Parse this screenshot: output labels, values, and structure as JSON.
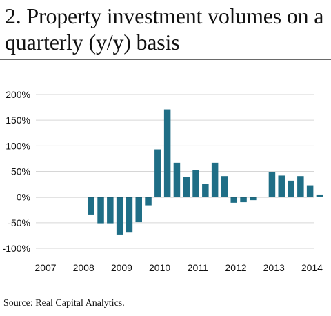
{
  "title": "2. Property investment volumes on a quarterly (y/y) basis",
  "source": "Source: Real Capital Analytics.",
  "colors": {
    "bar": "#1f6e86",
    "grid": "#d6d6d6",
    "zero_line": "#222222",
    "text": "#111111"
  },
  "chart_data": {
    "type": "bar",
    "title": "2. Property investment volumes on a quarterly (y/y) basis",
    "xlabel": "",
    "ylabel": "",
    "ylim": [
      -100,
      200
    ],
    "y_ticks": [
      -100,
      -50,
      0,
      50,
      100,
      150,
      200
    ],
    "y_tick_labels": [
      "-100%",
      "-50%",
      "0%",
      "50%",
      "100%",
      "150%",
      "200%"
    ],
    "x_ticks": [
      "2007",
      "2008",
      "2009",
      "2010",
      "2011",
      "2012",
      "2013",
      "2014"
    ],
    "grid": true,
    "legend": "none",
    "series": [
      {
        "values": [
          {
            "x": "2008 Q1",
            "y": -34
          },
          {
            "x": "2008 Q2",
            "y": -51
          },
          {
            "x": "2008 Q3",
            "y": -51
          },
          {
            "x": "2008 Q4",
            "y": -73
          },
          {
            "x": "2009 Q1",
            "y": -68
          },
          {
            "x": "2009 Q2",
            "y": -49
          },
          {
            "x": "2009 Q3",
            "y": -16
          },
          {
            "x": "2009 Q4",
            "y": 93
          },
          {
            "x": "2010 Q1",
            "y": 171
          },
          {
            "x": "2010 Q2",
            "y": 67
          },
          {
            "x": "2010 Q3",
            "y": 39
          },
          {
            "x": "2010 Q4",
            "y": 52
          },
          {
            "x": "2011 Q1",
            "y": 26
          },
          {
            "x": "2011 Q2",
            "y": 67
          },
          {
            "x": "2011 Q3",
            "y": 41
          },
          {
            "x": "2011 Q4",
            "y": -11
          },
          {
            "x": "2012 Q1",
            "y": -10
          },
          {
            "x": "2012 Q2",
            "y": -6
          },
          {
            "x": "2012 Q4",
            "y": 48
          },
          {
            "x": "2013 Q1",
            "y": 42
          },
          {
            "x": "2013 Q2",
            "y": 32
          },
          {
            "x": "2013 Q3",
            "y": 41
          },
          {
            "x": "2013 Q4",
            "y": 23
          },
          {
            "x": "2014 Q1",
            "y": 5
          }
        ]
      }
    ]
  }
}
